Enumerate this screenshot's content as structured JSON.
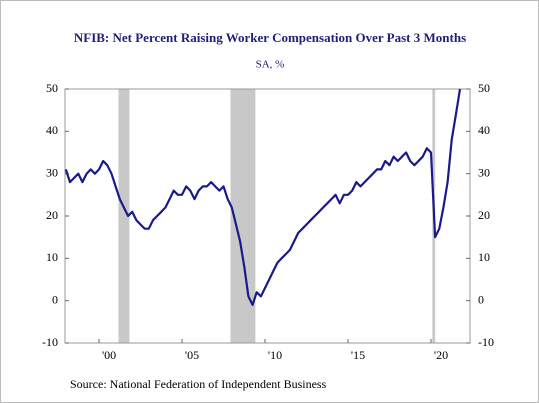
{
  "chart_data": {
    "type": "line",
    "title": "NFIB: Net Percent Raising Worker Compensation Over Past 3 Months",
    "subtitle": "SA, %",
    "source": "Source:  National Federation of Independent Business",
    "x": [
      1998,
      1998.25,
      1998.5,
      1998.75,
      1999,
      1999.25,
      1999.5,
      1999.75,
      2000,
      2000.25,
      2000.5,
      2000.75,
      2001,
      2001.25,
      2001.5,
      2001.75,
      2002,
      2002.25,
      2002.5,
      2002.75,
      2003,
      2003.25,
      2003.5,
      2003.75,
      2004,
      2004.25,
      2004.5,
      2004.75,
      2005,
      2005.25,
      2005.5,
      2005.75,
      2006,
      2006.25,
      2006.5,
      2006.75,
      2007,
      2007.25,
      2007.5,
      2007.75,
      2008,
      2008.25,
      2008.5,
      2008.75,
      2009,
      2009.25,
      2009.5,
      2009.75,
      2010,
      2010.25,
      2010.5,
      2010.75,
      2011,
      2011.25,
      2011.5,
      2011.75,
      2012,
      2012.25,
      2012.5,
      2012.75,
      2013,
      2013.25,
      2013.5,
      2013.75,
      2014,
      2014.25,
      2014.5,
      2014.75,
      2015,
      2015.25,
      2015.5,
      2015.75,
      2016,
      2016.25,
      2016.5,
      2016.75,
      2017,
      2017.25,
      2017.5,
      2017.75,
      2018,
      2018.25,
      2018.5,
      2018.75,
      2019,
      2019.25,
      2019.5,
      2019.75,
      2020,
      2020.25,
      2020.5,
      2020.75,
      2021,
      2021.25,
      2021.5,
      2021.75
    ],
    "series": [
      {
        "name": "Net Percent Raising Worker Compensation",
        "color": "#1a1a8c",
        "values": [
          31,
          28,
          29,
          30,
          28,
          30,
          31,
          30,
          31,
          33,
          32,
          30,
          27,
          24,
          22,
          20,
          21,
          19,
          18,
          17,
          17,
          19,
          20,
          21,
          22,
          24,
          26,
          25,
          25,
          27,
          26,
          24,
          26,
          27,
          27,
          28,
          27,
          26,
          27,
          24,
          22,
          18,
          14,
          8,
          1,
          -1,
          2,
          1,
          3,
          5,
          7,
          9,
          10,
          11,
          12,
          14,
          16,
          17,
          18,
          19,
          20,
          21,
          22,
          23,
          24,
          25,
          23,
          25,
          25,
          26,
          28,
          27,
          28,
          29,
          30,
          31,
          31,
          33,
          32,
          34,
          33,
          34,
          35,
          33,
          32,
          33,
          34,
          36,
          35,
          15,
          17,
          22,
          28,
          38,
          44,
          50
        ]
      }
    ],
    "recessions": [
      [
        2001.17,
        2001.83
      ],
      [
        2007.92,
        2009.42
      ],
      [
        2020.08,
        2020.25
      ]
    ],
    "recession_color": "#c8c8c8",
    "xlim": [
      1997.95,
      2022.35
    ],
    "xticks": [
      {
        "value": 2000,
        "label": "'00"
      },
      {
        "value": 2005,
        "label": "'05"
      },
      {
        "value": 2010,
        "label": "'10"
      },
      {
        "value": 2015,
        "label": "'15"
      },
      {
        "value": 2020,
        "label": "'20"
      }
    ],
    "ylim": [
      -10,
      50
    ],
    "yticks": [
      -10,
      0,
      10,
      20,
      30,
      40,
      50
    ],
    "y2lim": [
      -10,
      50
    ],
    "y2ticks": [
      -10,
      0,
      10,
      20,
      30,
      40,
      50
    ]
  }
}
